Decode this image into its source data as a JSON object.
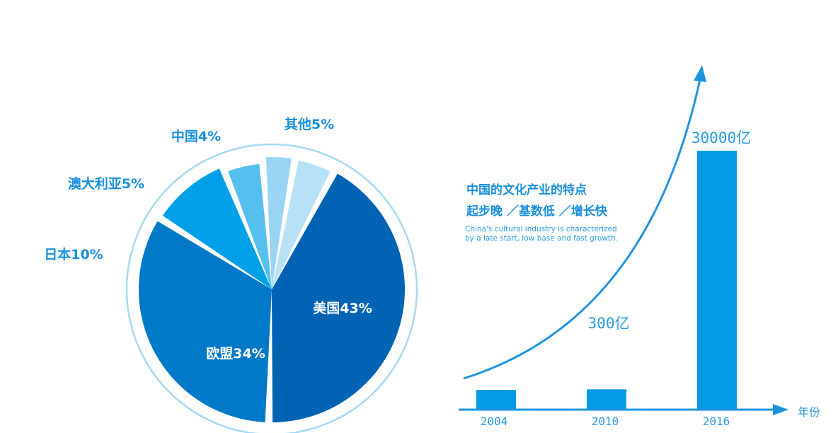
{
  "colors": {
    "accent": "#1a8fdc",
    "ring": "#a8d8f3",
    "bar": "#049be5",
    "axis": "#1e94de"
  },
  "chart_data": [
    {
      "type": "pie",
      "slices": [
        {
          "label": "美国43%",
          "value": 43,
          "color": "#0063b4"
        },
        {
          "label": "欧盟34%",
          "value": 34,
          "color": "#0079c9"
        },
        {
          "label": "日本10%",
          "value": 10,
          "color": "#00a0e9"
        },
        {
          "label": "澳大利亚5%",
          "value": 5,
          "color": "#55c0ef"
        },
        {
          "label": "中国4%",
          "value": 4,
          "color": "#99d4f4"
        },
        {
          "label": "其他5%",
          "value": 5,
          "color": "#b7e1f7"
        }
      ]
    },
    {
      "type": "bar",
      "categories": [
        "2004",
        "2010",
        "2016"
      ],
      "values": [
        20,
        300,
        30000
      ],
      "value_labels": [
        "",
        "300亿",
        "30000亿"
      ],
      "xlabel": "年份",
      "annotation": {
        "title": "中国的文化产业的特点",
        "subtitle": "起步晚 ／基数低 ／增长快",
        "english": [
          "China's cultural industry is characterized",
          "by a late start, low base and fast growth."
        ]
      }
    }
  ]
}
